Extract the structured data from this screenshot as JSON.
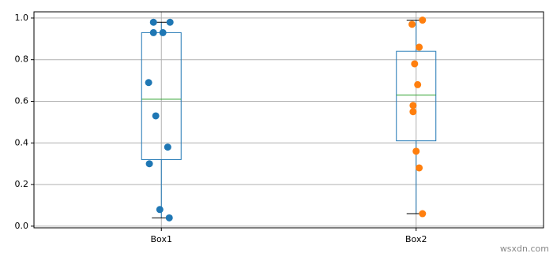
{
  "chart_data": {
    "type": "box",
    "categories": [
      "Box1",
      "Box2"
    ],
    "boxes": [
      {
        "whislo": 0.04,
        "q1": 0.32,
        "med": 0.61,
        "q3": 0.93,
        "whishi": 0.98
      },
      {
        "whislo": 0.06,
        "q1": 0.41,
        "med": 0.63,
        "q3": 0.84,
        "whishi": 0.99
      }
    ],
    "box_color": "#1f77b4",
    "median_color": "#2ca02c",
    "cap_color": "#000000",
    "series": [
      {
        "color": "#1f77b4",
        "x": [
          0.969,
          1.034,
          0.969,
          1.006,
          0.95,
          0.978,
          1.025,
          0.953,
          0.994,
          1.031
        ],
        "values": [
          0.98,
          0.98,
          0.93,
          0.93,
          0.69,
          0.53,
          0.38,
          0.3,
          0.08,
          0.04
        ]
      },
      {
        "color": "#ff7f0e",
        "x": [
          2.025,
          1.984,
          2.012,
          1.994,
          2.006,
          1.988,
          1.988,
          2.0,
          2.012,
          2.025
        ],
        "values": [
          0.99,
          0.97,
          0.86,
          0.78,
          0.68,
          0.58,
          0.55,
          0.36,
          0.28,
          0.06
        ]
      }
    ],
    "xlim": [
      0.5,
      2.5
    ],
    "ylim": [
      -0.008,
      1.03
    ],
    "yticks": [
      {
        "value": 0,
        "label": "0.0"
      },
      {
        "value": 0.2,
        "label": "0.2"
      },
      {
        "value": 0.4,
        "label": "0.4"
      },
      {
        "value": 0.6,
        "label": "0.6"
      },
      {
        "value": 0.8,
        "label": "0.8"
      },
      {
        "value": 1,
        "label": "1.0"
      }
    ],
    "grid": true,
    "watermark": "wsxdn.com"
  }
}
